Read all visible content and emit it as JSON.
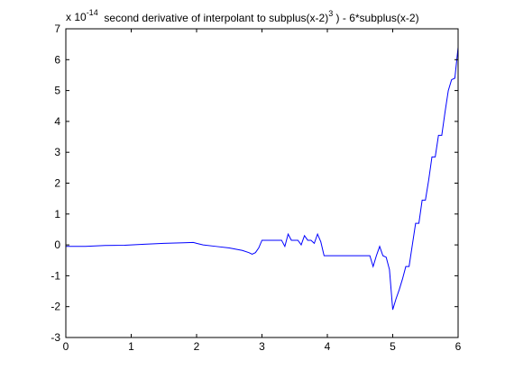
{
  "chart_data": {
    "type": "line",
    "title": "second derivative of interpolant to subplus(x-2)",
    "title_superscript": "3",
    "title_tail": " )  - 6*subplus(x-2)",
    "exponent_prefix": "x 10",
    "exponent_power": "-14",
    "xlim": [
      0,
      6
    ],
    "ylim": [
      -3,
      7
    ],
    "grid": false,
    "xticks": [
      0,
      1,
      2,
      3,
      4,
      5,
      6
    ],
    "yticks": [
      -3,
      -2,
      -1,
      0,
      1,
      2,
      3,
      4,
      5,
      6,
      7
    ],
    "xtick_labels": [
      "0",
      "1",
      "2",
      "3",
      "4",
      "5",
      "6"
    ],
    "ytick_labels": [
      "-3",
      "-2",
      "-1",
      "0",
      "1",
      "2",
      "3",
      "4",
      "5",
      "6",
      "7"
    ],
    "series": [
      {
        "color": "#0000ff",
        "x": [
          0,
          0.3,
          0.6,
          0.9,
          1.2,
          1.5,
          1.8,
          1.95,
          2.0,
          2.1,
          2.3,
          2.5,
          2.7,
          2.8,
          2.85,
          2.9,
          2.95,
          3.0,
          3.1,
          3.2,
          3.3,
          3.35,
          3.4,
          3.45,
          3.5,
          3.55,
          3.6,
          3.65,
          3.7,
          3.75,
          3.8,
          3.85,
          3.9,
          3.95,
          4.0,
          4.1,
          4.3,
          4.5,
          4.65,
          4.7,
          4.75,
          4.8,
          4.85,
          4.9,
          4.95,
          5.0,
          5.05,
          5.1,
          5.15,
          5.2,
          5.25,
          5.3,
          5.35,
          5.4,
          5.45,
          5.5,
          5.55,
          5.6,
          5.65,
          5.7,
          5.75,
          5.8,
          5.85,
          5.9,
          5.95,
          6.0
        ],
        "values": [
          -0.05,
          -0.05,
          -0.02,
          -0.01,
          0.02,
          0.05,
          0.07,
          0.08,
          0.05,
          0.0,
          -0.05,
          -0.1,
          -0.18,
          -0.25,
          -0.3,
          -0.25,
          -0.1,
          0.15,
          0.15,
          0.15,
          0.15,
          -0.05,
          0.35,
          0.15,
          0.15,
          0.15,
          0.0,
          0.3,
          0.15,
          0.15,
          0.05,
          0.35,
          0.1,
          -0.35,
          -0.35,
          -0.35,
          -0.35,
          -0.35,
          -0.35,
          -0.7,
          -0.35,
          -0.05,
          -0.35,
          -0.4,
          -0.8,
          -2.1,
          -1.75,
          -1.45,
          -1.1,
          -0.7,
          -0.7,
          0.0,
          0.7,
          0.7,
          1.45,
          1.45,
          2.1,
          2.85,
          2.85,
          3.55,
          3.55,
          4.3,
          5.0,
          5.35,
          5.4,
          6.4
        ]
      }
    ]
  }
}
